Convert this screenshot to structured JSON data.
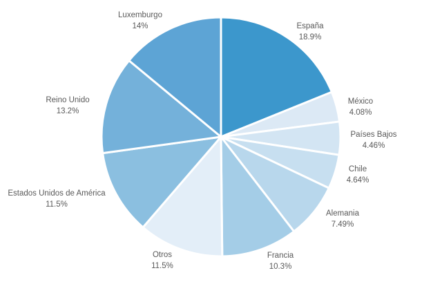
{
  "chart_data": {
    "type": "pie",
    "title": "",
    "start_angle_deg": 0,
    "direction": "clockwise",
    "legend": "none",
    "data_labels": "outside, category name above percentage",
    "slices": [
      {
        "label": "España",
        "value": 18.9,
        "value_label": "18.9%",
        "color": "#3C97CC"
      },
      {
        "label": "México",
        "value": 4.08,
        "value_label": "4.08%",
        "color": "#DCE9F5"
      },
      {
        "label": "Países Bajos",
        "value": 4.46,
        "value_label": "4.46%",
        "color": "#D3E5F3"
      },
      {
        "label": "Chile",
        "value": 4.64,
        "value_label": "4.64%",
        "color": "#C7DFF0"
      },
      {
        "label": "Alemania",
        "value": 7.49,
        "value_label": "7.49%",
        "color": "#B8D7EC"
      },
      {
        "label": "Francia",
        "value": 10.3,
        "value_label": "10.3%",
        "color": "#A4CDE7"
      },
      {
        "label": "Otros",
        "value": 11.5,
        "value_label": "11.5%",
        "color": "#E3EEF8"
      },
      {
        "label": "Estados Unidos de América",
        "value": 11.5,
        "value_label": "11.5%",
        "color": "#8BBFE0"
      },
      {
        "label": "Reino Unido",
        "value": 13.2,
        "value_label": "13.2%",
        "color": "#74B1DA"
      },
      {
        "label": "Luxemburgo",
        "value": 14.0,
        "value_label": "14%",
        "color": "#5DA4D5"
      }
    ]
  }
}
